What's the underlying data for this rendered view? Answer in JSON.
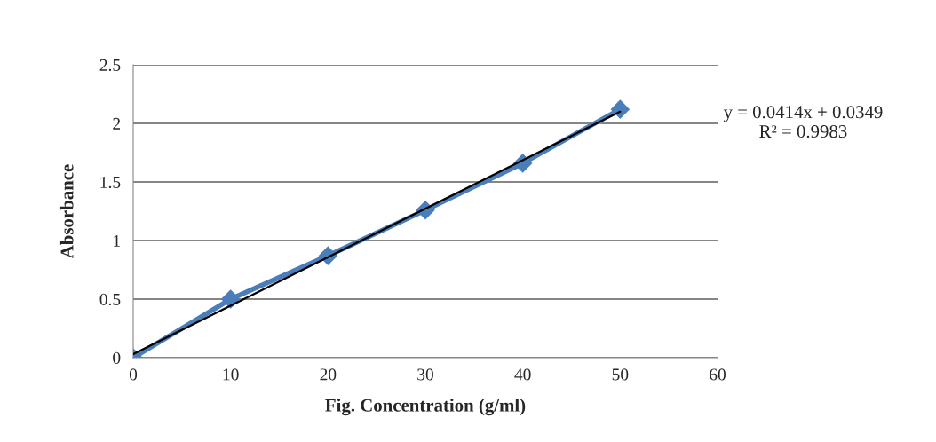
{
  "chart_data": {
    "type": "line",
    "xlabel": "Fig. Concentration (g/ml)",
    "ylabel": "Absorbance",
    "x": [
      0,
      10,
      20,
      30,
      40,
      50
    ],
    "series": [
      {
        "color": "#4a7ebb",
        "values": [
          0,
          0.5,
          0.87,
          1.26,
          1.66,
          2.12
        ],
        "marker": "diamond"
      },
      {
        "type": "line",
        "color": "#000000",
        "x": [
          0,
          50
        ],
        "values": [
          0.03,
          2.1
        ],
        "marker": "none"
      }
    ],
    "xlim": [
      0,
      60
    ],
    "xticks": [
      0,
      10,
      20,
      30,
      40,
      50,
      60
    ],
    "ylim": [
      0,
      2.5
    ],
    "yticks": [
      0,
      0.5,
      1,
      1.5,
      2,
      2.5
    ],
    "grid": "y",
    "legend": false,
    "annotations": [
      "y = 0.0414x + 0.0349\nR² = 0.9983"
    ]
  }
}
